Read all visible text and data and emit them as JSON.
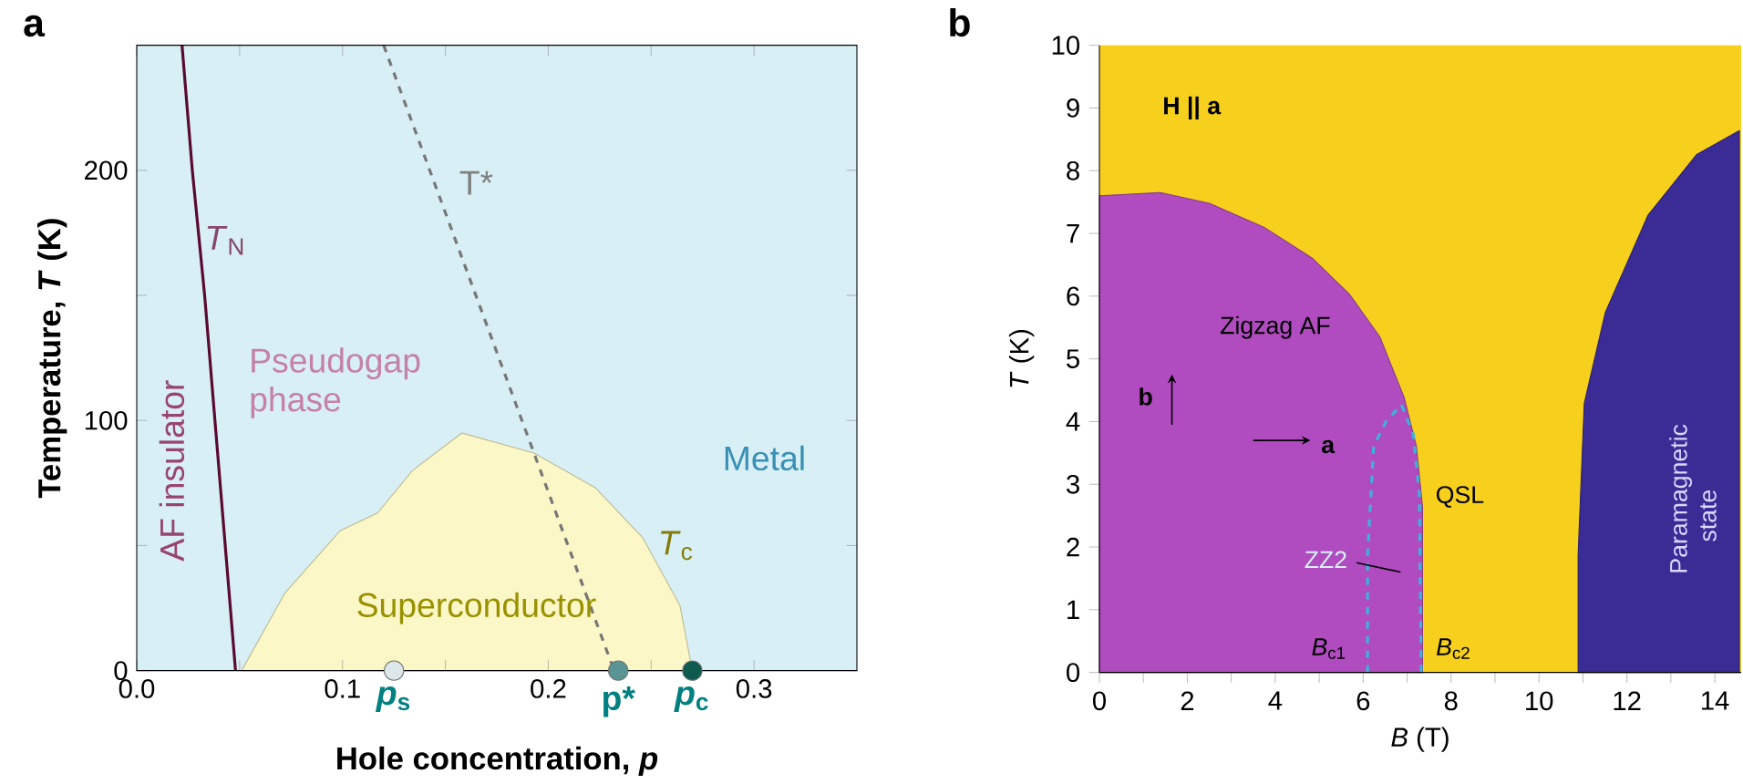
{
  "chart_data": [
    {
      "type": "line",
      "xlabel": "Hole concentration, *p*",
      "ylabel": "Temperature, *T* (K)",
      "xlim": [
        0,
        0.35
      ],
      "ylim": [
        0,
        250
      ],
      "xticks": [
        {
          "value": 0,
          "label": "0.0"
        },
        {
          "value": 0.05,
          "label": null
        },
        0.1,
        {
          "value": 0.15,
          "label": null
        },
        0.2,
        {
          "value": 0.25,
          "label": null
        },
        0.3
      ],
      "yticks": [
        0,
        {
          "value": 50,
          "label": null
        },
        100,
        {
          "value": 150,
          "label": null
        },
        200
      ],
      "annotations": [
        "a",
        "AF insulator",
        "Pseudogap phase",
        "Metal",
        "Superconductor"
      ],
      "series": [
        {
          "name": "*T*$_{c}$",
          "type": "area",
          "color": "#fcf7c6",
          "x": [
            0.051,
            0.072,
            0.099,
            0.117,
            0.134,
            0.158,
            0.193,
            0.223,
            0.246,
            0.264,
            0.27
          ],
          "values": [
            0,
            31,
            56,
            63,
            80,
            95,
            87,
            73,
            53,
            26,
            0
          ]
        },
        {
          "name": "*T*$_{N}$",
          "color": "#5a0a30",
          "x": [
            0.048,
            0.04,
            0.033,
            0.027,
            0.022
          ],
          "values": [
            0,
            80,
            150,
            200,
            250
          ]
        },
        {
          "name": "T*",
          "line_style": "dashed",
          "color": "#777777",
          "x": [
            0.12,
            0.232
          ],
          "values": [
            250,
            0
          ]
        },
        {
          "name": "*p*$_{s}$",
          "type": "scatter",
          "marker": "circle",
          "color": "#dde6e8",
          "x": [
            0.125
          ],
          "values": [
            0
          ]
        },
        {
          "name": "p*",
          "type": "scatter",
          "marker": "circle",
          "color": "#5a9494",
          "x": [
            0.234
          ],
          "values": [
            0
          ]
        },
        {
          "name": "*p*$_{c}$",
          "type": "scatter",
          "marker": "circle",
          "color": "#0e5a4e",
          "x": [
            0.27
          ],
          "values": [
            0
          ]
        }
      ]
    },
    {
      "type": "area",
      "xlabel": "*B* (T)",
      "ylabel": "*T* (K)",
      "xlim": [
        0,
        14.6
      ],
      "ylim": [
        0,
        10
      ],
      "xticks": [
        0,
        {
          "value": 1,
          "label": null
        },
        2,
        {
          "value": 3,
          "label": null
        },
        4,
        {
          "value": 5,
          "label": null
        },
        6,
        {
          "value": 7,
          "label": null
        },
        8,
        {
          "value": 9,
          "label": null
        },
        10,
        {
          "value": 11,
          "label": null
        },
        12,
        {
          "value": 13,
          "label": null
        },
        14
      ],
      "yticks": [
        0,
        1,
        2,
        3,
        4,
        5,
        6,
        7,
        8,
        9,
        10
      ],
      "annotations": [
        "b",
        "**H || a**",
        "QSL",
        "**b**",
        "**a**",
        {
          "text": "*B*$_{c1}$",
          "x": 6.1,
          "y": 0
        },
        {
          "text": "*B*$_{c2}$",
          "x": 7.35,
          "y": 0
        }
      ],
      "series": [
        {
          "name": "Zigzag AF",
          "color": "#b04cc0",
          "x": [
            0,
            1.39,
            2.5,
            3.74,
            4.85,
            5.69,
            6.38,
            6.93,
            7.21,
            7.35,
            7.35
          ],
          "values": [
            7.6,
            7.65,
            7.48,
            7.1,
            6.6,
            6.03,
            5.35,
            4.39,
            3.61,
            2.64,
            0
          ]
        },
        {
          "name": "Paramagnetic state",
          "color": "#3b2b95",
          "x": [
            10.89,
            10.89,
            11.03,
            11.51,
            12.48,
            13.59,
            14.56
          ],
          "values": [
            0,
            1.87,
            4.29,
            5.74,
            7.29,
            8.26,
            8.64
          ]
        },
        {
          "name": "ZZ2",
          "type": "line",
          "line_style": "dashed",
          "color": "#3bb4d8",
          "x": [
            6.1,
            6.1,
            6.24,
            6.52,
            6.87,
            7.14,
            7.28,
            7.32
          ],
          "values": [
            0,
            1.87,
            3.61,
            4.0,
            4.27,
            3.8,
            2.84,
            0
          ]
        }
      ]
    }
  ]
}
